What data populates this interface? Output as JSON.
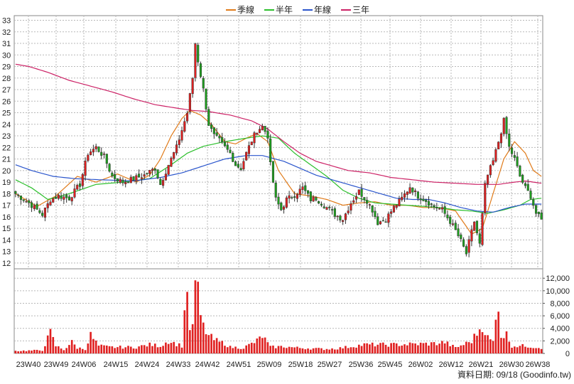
{
  "chart_data": {
    "type": "candlestick",
    "source_note": "資料日期: 09/18 (Goodinfo.tw)",
    "legend": [
      {
        "name": "季線",
        "color": "#e07b1a"
      },
      {
        "name": "半年",
        "color": "#2bbf2b"
      },
      {
        "name": "年線",
        "color": "#2a55cc"
      },
      {
        "name": "三年",
        "color": "#cc2266"
      }
    ],
    "colors": {
      "up": "#e02020",
      "down": "#1ea01e",
      "volume": "#e02020",
      "grid": "#b8b8b8"
    },
    "price_axis": {
      "ylim": [
        11.5,
        33.4
      ],
      "ticks": [
        12,
        13,
        14,
        15,
        16,
        17,
        18,
        19,
        20,
        21,
        22,
        23,
        24,
        25,
        26,
        27,
        28,
        29,
        30,
        31,
        32,
        33
      ]
    },
    "volume_axis": {
      "ylim": [
        0,
        13500
      ],
      "ticks": [
        0,
        2000,
        4000,
        6000,
        8000,
        10000,
        12000
      ],
      "tick_labels": [
        "0",
        "2,000",
        "4,000",
        "6,000",
        "8,000",
        "10,000",
        "12,000"
      ]
    },
    "x_labels": [
      "23W40",
      "23W49",
      "24W06",
      "24W15",
      "24W24",
      "24W33",
      "24W42",
      "24W51",
      "25W09",
      "25W18",
      "25W27",
      "25W36",
      "25W45",
      "26W02",
      "26W12",
      "26W21",
      "26W30",
      "26W38"
    ],
    "ma_anchors": {
      "季線": [
        [
          0,
          18.0
        ],
        [
          8,
          16.9
        ],
        [
          15,
          17.8
        ],
        [
          23,
          19.5
        ],
        [
          30,
          19.0
        ],
        [
          38,
          19.7
        ],
        [
          45,
          19.0
        ],
        [
          50,
          19.6
        ],
        [
          54,
          21.0
        ],
        [
          58,
          23.0
        ],
        [
          62,
          24.5
        ],
        [
          65,
          25.2
        ],
        [
          69,
          24.8
        ],
        [
          73,
          24.0
        ],
        [
          78,
          22.5
        ],
        [
          82,
          22.3
        ],
        [
          86,
          22.8
        ],
        [
          90,
          23.2
        ],
        [
          94,
          22.5
        ],
        [
          98,
          20.0
        ],
        [
          104,
          18.0
        ],
        [
          110,
          17.8
        ],
        [
          116,
          17.5
        ],
        [
          122,
          17.0
        ],
        [
          128,
          17.2
        ],
        [
          134,
          17.3
        ],
        [
          140,
          17.0
        ],
        [
          146,
          17.0
        ],
        [
          152,
          16.8
        ],
        [
          158,
          16.8
        ],
        [
          164,
          16.5
        ],
        [
          167,
          15.5
        ],
        [
          170,
          14.5
        ],
        [
          174,
          15.0
        ],
        [
          178,
          18.0
        ],
        [
          182,
          21.0
        ],
        [
          186,
          22.5
        ],
        [
          190,
          21.5
        ],
        [
          193,
          20.0
        ],
        [
          196,
          19.5
        ]
      ],
      "半年": [
        [
          0,
          19.2
        ],
        [
          6,
          18.5
        ],
        [
          12,
          17.5
        ],
        [
          20,
          18.0
        ],
        [
          30,
          18.8
        ],
        [
          40,
          19.0
        ],
        [
          50,
          19.3
        ],
        [
          58,
          20.5
        ],
        [
          64,
          21.5
        ],
        [
          70,
          22.1
        ],
        [
          78,
          22.5
        ],
        [
          86,
          22.8
        ],
        [
          92,
          23.0
        ],
        [
          98,
          22.8
        ],
        [
          104,
          21.5
        ],
        [
          110,
          20.5
        ],
        [
          116,
          19.5
        ],
        [
          122,
          18.3
        ],
        [
          128,
          17.6
        ],
        [
          134,
          17.2
        ],
        [
          140,
          17.1
        ],
        [
          146,
          17.0
        ],
        [
          152,
          16.9
        ],
        [
          158,
          16.8
        ],
        [
          164,
          16.6
        ],
        [
          170,
          16.5
        ],
        [
          176,
          16.3
        ],
        [
          182,
          16.6
        ],
        [
          188,
          17.0
        ],
        [
          192,
          17.5
        ],
        [
          196,
          17.6
        ]
      ],
      "年線": [
        [
          0,
          20.5
        ],
        [
          6,
          20.0
        ],
        [
          14,
          19.5
        ],
        [
          22,
          19.3
        ],
        [
          32,
          19.2
        ],
        [
          44,
          19.1
        ],
        [
          54,
          19.4
        ],
        [
          62,
          19.8
        ],
        [
          70,
          20.4
        ],
        [
          78,
          21.0
        ],
        [
          86,
          21.3
        ],
        [
          92,
          21.3
        ],
        [
          100,
          20.8
        ],
        [
          106,
          20.2
        ],
        [
          112,
          19.6
        ],
        [
          118,
          19.2
        ],
        [
          124,
          18.8
        ],
        [
          130,
          18.4
        ],
        [
          136,
          18.0
        ],
        [
          142,
          17.6
        ],
        [
          148,
          17.5
        ],
        [
          154,
          17.5
        ],
        [
          160,
          17.2
        ],
        [
          166,
          16.8
        ],
        [
          172,
          16.5
        ],
        [
          178,
          16.4
        ],
        [
          184,
          16.8
        ],
        [
          190,
          17.1
        ],
        [
          196,
          17.1
        ]
      ],
      "三年": [
        [
          0,
          29.2
        ],
        [
          5,
          29.0
        ],
        [
          12,
          28.5
        ],
        [
          20,
          27.8
        ],
        [
          28,
          27.3
        ],
        [
          36,
          26.8
        ],
        [
          44,
          26.2
        ],
        [
          52,
          25.7
        ],
        [
          60,
          25.4
        ],
        [
          66,
          25.2
        ],
        [
          72,
          25.1
        ],
        [
          80,
          24.8
        ],
        [
          88,
          24.3
        ],
        [
          94,
          23.6
        ],
        [
          100,
          22.5
        ],
        [
          106,
          21.5
        ],
        [
          112,
          20.8
        ],
        [
          118,
          20.4
        ],
        [
          124,
          20.0
        ],
        [
          132,
          19.8
        ],
        [
          140,
          19.4
        ],
        [
          148,
          19.2
        ],
        [
          156,
          19.0
        ],
        [
          164,
          18.9
        ],
        [
          172,
          18.8
        ],
        [
          180,
          18.8
        ],
        [
          186,
          19.0
        ],
        [
          190,
          19.1
        ],
        [
          196,
          18.9
        ]
      ]
    },
    "price_anchors": [
      [
        0,
        18.0
      ],
      [
        5,
        17.2
      ],
      [
        10,
        16.2
      ],
      [
        13,
        17.5
      ],
      [
        16,
        17.8
      ],
      [
        20,
        17.6
      ],
      [
        24,
        18.8
      ],
      [
        27,
        21.5
      ],
      [
        30,
        22.0
      ],
      [
        33,
        21.2
      ],
      [
        36,
        19.5
      ],
      [
        40,
        19.0
      ],
      [
        44,
        19.3
      ],
      [
        48,
        19.6
      ],
      [
        52,
        20.2
      ],
      [
        54,
        18.8
      ],
      [
        57,
        20.5
      ],
      [
        60,
        22.0
      ],
      [
        62,
        23.5
      ],
      [
        64,
        25.0
      ],
      [
        66,
        28.0
      ],
      [
        67,
        31.0
      ],
      [
        68,
        29.5
      ],
      [
        70,
        27.0
      ],
      [
        71,
        25.5
      ],
      [
        72,
        24.0
      ],
      [
        74,
        23.0
      ],
      [
        76,
        22.6
      ],
      [
        78,
        22.0
      ],
      [
        80,
        21.5
      ],
      [
        82,
        20.5
      ],
      [
        84,
        20.2
      ],
      [
        86,
        21.5
      ],
      [
        88,
        22.6
      ],
      [
        90,
        23.5
      ],
      [
        92,
        23.8
      ],
      [
        94,
        23.0
      ],
      [
        95,
        20.5
      ],
      [
        97,
        17.5
      ],
      [
        99,
        16.6
      ],
      [
        101,
        17.5
      ],
      [
        104,
        17.9
      ],
      [
        107,
        18.5
      ],
      [
        110,
        17.5
      ],
      [
        112,
        17.6
      ],
      [
        116,
        16.8
      ],
      [
        119,
        16.2
      ],
      [
        122,
        15.8
      ],
      [
        125,
        17.2
      ],
      [
        128,
        18.2
      ],
      [
        131,
        17.4
      ],
      [
        133,
        16.6
      ],
      [
        135,
        15.5
      ],
      [
        138,
        15.8
      ],
      [
        141,
        16.8
      ],
      [
        144,
        17.6
      ],
      [
        147,
        18.6
      ],
      [
        150,
        17.8
      ],
      [
        153,
        17.4
      ],
      [
        156,
        16.9
      ],
      [
        159,
        16.6
      ],
      [
        162,
        15.6
      ],
      [
        164,
        14.8
      ],
      [
        166,
        13.9
      ],
      [
        168,
        12.8
      ],
      [
        169,
        13.8
      ],
      [
        171,
        15.6
      ],
      [
        173,
        13.6
      ],
      [
        175,
        18.7
      ],
      [
        176,
        19.6
      ],
      [
        178,
        20.8
      ],
      [
        180,
        22.5
      ],
      [
        182,
        24.3
      ],
      [
        184,
        22.0
      ],
      [
        186,
        21.0
      ],
      [
        188,
        19.5
      ],
      [
        190,
        18.5
      ],
      [
        192,
        17.8
      ],
      [
        194,
        16.3
      ],
      [
        196,
        15.7
      ]
    ],
    "volume_anchors": [
      [
        0,
        400
      ],
      [
        10,
        500
      ],
      [
        13,
        3300
      ],
      [
        15,
        1200
      ],
      [
        18,
        600
      ],
      [
        21,
        1800
      ],
      [
        23,
        900
      ],
      [
        26,
        700
      ],
      [
        28,
        2900
      ],
      [
        31,
        1200
      ],
      [
        35,
        1000
      ],
      [
        40,
        1000
      ],
      [
        45,
        1000
      ],
      [
        50,
        1400
      ],
      [
        54,
        1200
      ],
      [
        57,
        2000
      ],
      [
        60,
        1500
      ],
      [
        62,
        1200
      ],
      [
        64,
        11500
      ],
      [
        65,
        3000
      ],
      [
        66,
        5000
      ],
      [
        67,
        10500
      ],
      [
        68,
        9500
      ],
      [
        69,
        6000
      ],
      [
        70,
        4200
      ],
      [
        72,
        2800
      ],
      [
        74,
        2200
      ],
      [
        76,
        1800
      ],
      [
        78,
        1600
      ],
      [
        80,
        1000
      ],
      [
        85,
        900
      ],
      [
        90,
        2000
      ],
      [
        92,
        2800
      ],
      [
        95,
        1000
      ],
      [
        100,
        1100
      ],
      [
        105,
        900
      ],
      [
        110,
        800
      ],
      [
        115,
        700
      ],
      [
        120,
        800
      ],
      [
        130,
        1400
      ],
      [
        140,
        1400
      ],
      [
        150,
        1500
      ],
      [
        157,
        1600
      ],
      [
        160,
        1800
      ],
      [
        164,
        900
      ],
      [
        168,
        1600
      ],
      [
        170,
        2000
      ],
      [
        174,
        4500
      ],
      [
        176,
        2500
      ],
      [
        178,
        1800
      ],
      [
        180,
        8500
      ],
      [
        181,
        2800
      ],
      [
        183,
        3000
      ],
      [
        185,
        1200
      ],
      [
        190,
        1200
      ],
      [
        196,
        900
      ]
    ]
  }
}
